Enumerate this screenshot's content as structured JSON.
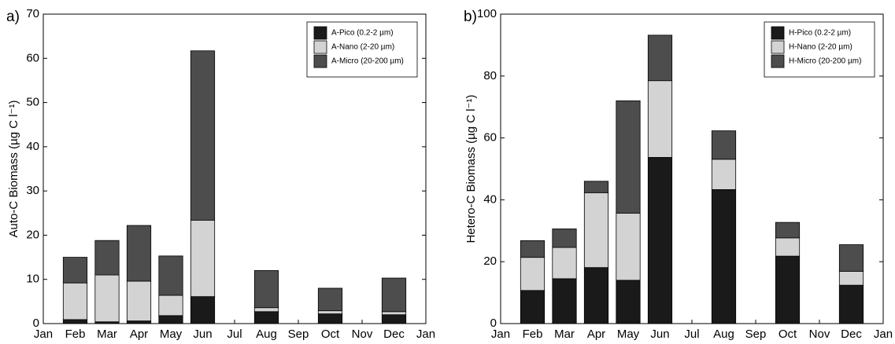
{
  "chart_data": [
    {
      "type": "bar",
      "stacked": true,
      "panel_label": "a)",
      "ylabel": "Auto-C Biomass (µg C l⁻¹)",
      "categories": [
        "Jan",
        "Feb",
        "Mar",
        "Apr",
        "May",
        "Jun",
        "Jul",
        "Aug",
        "Sep",
        "Oct",
        "Nov",
        "Dec",
        "Jan"
      ],
      "series": [
        {
          "name": "A-Pico (0.2-2 µm)",
          "color": "#1a1a1a",
          "values": [
            null,
            0.9,
            0.4,
            0.6,
            1.8,
            6.1,
            null,
            2.7,
            null,
            2.2,
            null,
            2.0,
            null
          ]
        },
        {
          "name": "A-Nano (2-20 µm)",
          "color": "#d3d3d3",
          "values": [
            null,
            8.3,
            10.6,
            9.0,
            4.6,
            17.3,
            null,
            0.9,
            null,
            0.7,
            null,
            0.7,
            null
          ]
        },
        {
          "name": "A-Micro (20-200 µm)",
          "color": "#4d4d4d",
          "values": [
            null,
            5.8,
            7.8,
            12.6,
            8.9,
            38.3,
            null,
            8.4,
            null,
            5.1,
            null,
            7.6,
            null
          ]
        }
      ],
      "ylim": [
        0,
        70
      ],
      "yticks": [
        0,
        10,
        20,
        30,
        40,
        50,
        60,
        70
      ],
      "legend": "upper right"
    },
    {
      "type": "bar",
      "stacked": true,
      "panel_label": "b)",
      "ylabel": "Hetero-C Biomass (µg C l⁻¹)",
      "categories": [
        "Jan",
        "Feb",
        "Mar",
        "Apr",
        "May",
        "Jun",
        "Jul",
        "Aug",
        "Sep",
        "Oct",
        "Nov",
        "Dec",
        "Jan"
      ],
      "series": [
        {
          "name": "H-Pico (0.2-2 µm)",
          "color": "#1a1a1a",
          "values": [
            null,
            10.7,
            14.5,
            18.1,
            14.0,
            53.7,
            null,
            43.3,
            null,
            21.8,
            null,
            12.4,
            null
          ]
        },
        {
          "name": "H-Nano (2-20 µm)",
          "color": "#d3d3d3",
          "values": [
            null,
            10.7,
            10.1,
            24.2,
            21.7,
            24.8,
            null,
            9.8,
            null,
            5.9,
            null,
            4.5,
            null
          ]
        },
        {
          "name": "H-Micro (20-200 µm)",
          "color": "#4d4d4d",
          "values": [
            null,
            5.4,
            6.0,
            3.7,
            36.3,
            14.7,
            null,
            9.2,
            null,
            5.0,
            null,
            8.6,
            null
          ]
        }
      ],
      "ylim": [
        0,
        100
      ],
      "yticks": [
        0,
        20,
        40,
        60,
        80,
        100
      ],
      "legend": "upper right"
    }
  ]
}
